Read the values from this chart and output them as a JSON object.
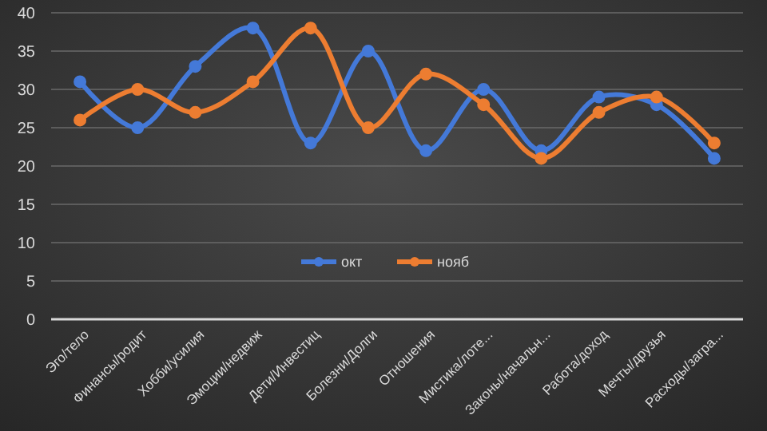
{
  "chart_data": {
    "type": "line",
    "categories": [
      "Эго/тело",
      "Финансы/родит",
      "Хобби/усилия",
      "Эмоции/недвиж",
      "Дети/Инвестиц",
      "Болезни/Долги",
      "Отношения",
      "Мистика/лоте...",
      "Законы/начальн...",
      "Работа/доход",
      "Мечты/друзья",
      "Расходы/загра..."
    ],
    "series": [
      {
        "name": "окт",
        "color": "#4479d8",
        "values": [
          31,
          25,
          33,
          38,
          23,
          35,
          22,
          30,
          22,
          29,
          28,
          21
        ]
      },
      {
        "name": "нояб",
        "color": "#ed7d31",
        "values": [
          26,
          30,
          27,
          31,
          38,
          25,
          32,
          28,
          21,
          27,
          29,
          23
        ]
      }
    ],
    "ylim": [
      0,
      40
    ],
    "yticks": [
      0,
      5,
      10,
      15,
      20,
      25,
      30,
      35,
      40
    ],
    "grid": "y",
    "legend": "bottom",
    "marker": "circle",
    "line_style": "solid"
  }
}
